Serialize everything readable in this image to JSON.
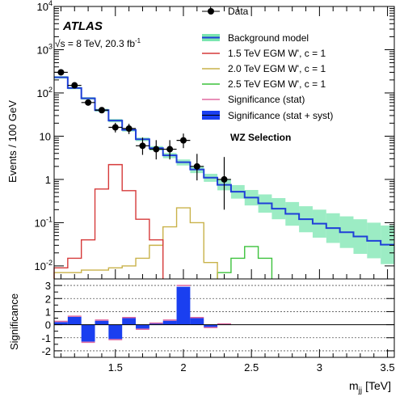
{
  "chart_data": [
    {
      "type": "line",
      "panel": "main",
      "xlim": [
        1.05,
        3.55
      ],
      "ylim": [
        0.005,
        10000
      ],
      "ylog": true,
      "ylabel": "Events / 100 GeV",
      "yticks": [
        {
          "v": 0.01,
          "b": "10",
          "e": "-2"
        },
        {
          "v": 0.1,
          "b": "10",
          "e": "-1"
        },
        {
          "v": 1,
          "b": "1",
          "e": ""
        },
        {
          "v": 10,
          "b": "10",
          "e": ""
        },
        {
          "v": 100,
          "b": "10",
          "e": "2"
        },
        {
          "v": 1000,
          "b": "10",
          "e": "3"
        },
        {
          "v": 10000,
          "b": "10",
          "e": "4"
        }
      ],
      "atlas_label": "ATLAS",
      "energy_label": {
        "sqrt": "√s",
        "text": " = 8 TeV, 20.3 fb",
        "sup": "-1"
      },
      "selection_label": "WZ Selection",
      "legend": {
        "placement": "top-right",
        "data": "Data",
        "background": "Background model",
        "wp15": "1.5 TeV EGM W', c = 1",
        "wp20": "2.0 TeV EGM W', c = 1",
        "wp25": "2.5 TeV EGM W', c = 1",
        "sig_stat": "Significance (stat)",
        "sig_syst": "Significance (stat + syst)"
      },
      "colors": {
        "background": "#1f3fd8",
        "band": "#7be6b0",
        "wp15": "#d63a3a",
        "wp20": "#c9b24a",
        "wp25": "#3cc23c",
        "significance_fill": "#1a3ff0",
        "stat_line": "#e06aa0"
      },
      "series": [
        {
          "name": "Background model",
          "edges": [
            1.05,
            1.15,
            1.25,
            1.35,
            1.45,
            1.55,
            1.65,
            1.75,
            1.85,
            1.95,
            2.05,
            2.15,
            2.25,
            2.35,
            2.45,
            2.55,
            2.65,
            2.75,
            2.85,
            2.95,
            3.05,
            3.15,
            3.25,
            3.35,
            3.45,
            3.55
          ],
          "values": [
            230,
            130,
            75,
            40,
            23,
            14,
            8.5,
            5.3,
            3.6,
            2.5,
            1.7,
            1.1,
            0.75,
            0.52,
            0.38,
            0.28,
            0.21,
            0.16,
            0.12,
            0.095,
            0.075,
            0.06,
            0.048,
            0.038,
            0.031
          ],
          "band_low": [
            215,
            122,
            70,
            37,
            21,
            12.8,
            7.7,
            4.7,
            3.1,
            2.1,
            1.4,
            0.88,
            0.56,
            0.36,
            0.25,
            0.17,
            0.12,
            0.085,
            0.06,
            0.045,
            0.034,
            0.026,
            0.019,
            0.015,
            0.011
          ],
          "band_high": [
            245,
            138,
            80,
            43,
            25,
            15.2,
            9.3,
            5.9,
            4.1,
            2.9,
            2.0,
            1.35,
            0.98,
            0.74,
            0.57,
            0.45,
            0.37,
            0.3,
            0.24,
            0.2,
            0.165,
            0.14,
            0.12,
            0.1,
            0.086
          ]
        },
        {
          "name": "1.5 TeV EGM W', c = 1",
          "edges": [
            1.05,
            1.15,
            1.25,
            1.35,
            1.45,
            1.55,
            1.65,
            1.75,
            1.85
          ],
          "values": [
            0.009,
            0.015,
            0.04,
            0.6,
            2.2,
            0.55,
            0.12,
            0.04
          ]
        },
        {
          "name": "2.0 TeV EGM W', c = 1",
          "edges": [
            1.05,
            1.15,
            1.25,
            1.35,
            1.45,
            1.55,
            1.65,
            1.75,
            1.85,
            1.95,
            2.05,
            2.15,
            2.25
          ],
          "values": [
            0.007,
            0.007,
            0.008,
            0.008,
            0.009,
            0.01,
            0.015,
            0.03,
            0.08,
            0.22,
            0.1,
            0.012
          ]
        },
        {
          "name": "2.5 TeV EGM W', c = 1",
          "edges": [
            2.25,
            2.35,
            2.45,
            2.55,
            2.65
          ],
          "values": [
            0.007,
            0.015,
            0.028,
            0.015
          ]
        },
        {
          "name": "Data",
          "x": [
            1.1,
            1.2,
            1.3,
            1.4,
            1.5,
            1.6,
            1.7,
            1.8,
            1.9,
            2.0,
            2.1,
            2.3
          ],
          "y": [
            300,
            150,
            60,
            40,
            16,
            15,
            6,
            5,
            5,
            8,
            2,
            1
          ],
          "y_low": [
            285,
            139,
            53,
            34,
            12.2,
            11.2,
            3.7,
            2.9,
            2.9,
            5.3,
            0.95,
            0.2
          ],
          "y_high": [
            317,
            163,
            68,
            47,
            20.4,
            19.3,
            9.3,
            8.1,
            8.1,
            11.5,
            3.9,
            3.3
          ]
        }
      ]
    },
    {
      "type": "bar",
      "panel": "ratio",
      "ylabel": "Significance",
      "xlabel": "m",
      "xlabel_sub": "jj",
      "xlabel_unit": "[TeV]",
      "xlim": [
        1.05,
        3.55
      ],
      "ylim": [
        -2.5,
        3.5
      ],
      "yticks": [
        -2,
        -1,
        0,
        1,
        2,
        3
      ],
      "xticks": [
        1.5,
        2,
        2.5,
        3,
        3.5
      ],
      "xticklabels": [
        "1.5",
        "2",
        "2.5",
        "3",
        "3.5"
      ],
      "grid_y": [
        -2,
        -1,
        1,
        2,
        3
      ],
      "edges": [
        1.05,
        1.15,
        1.25,
        1.35,
        1.45,
        1.55,
        1.65,
        1.75,
        1.85,
        1.95,
        2.05,
        2.15,
        2.25,
        2.35,
        2.45,
        2.55,
        2.65,
        2.75,
        2.85,
        2.95,
        3.05,
        3.15,
        3.25,
        3.35,
        3.45,
        3.55
      ],
      "values_syst": [
        0.2,
        0.6,
        -1.3,
        0.3,
        -1.1,
        0.5,
        -0.3,
        0.1,
        0.3,
        2.9,
        0.5,
        -0.2,
        0.05,
        0,
        0,
        0,
        0,
        0,
        0,
        0,
        0,
        0,
        0,
        0,
        0
      ],
      "values_stat": [
        0.25,
        0.65,
        -1.35,
        0.35,
        -1.15,
        0.55,
        -0.35,
        0.12,
        0.35,
        3.0,
        0.55,
        -0.22,
        0.06,
        0,
        0,
        0,
        0,
        0,
        0,
        0,
        0,
        0,
        0,
        0,
        0
      ]
    }
  ]
}
